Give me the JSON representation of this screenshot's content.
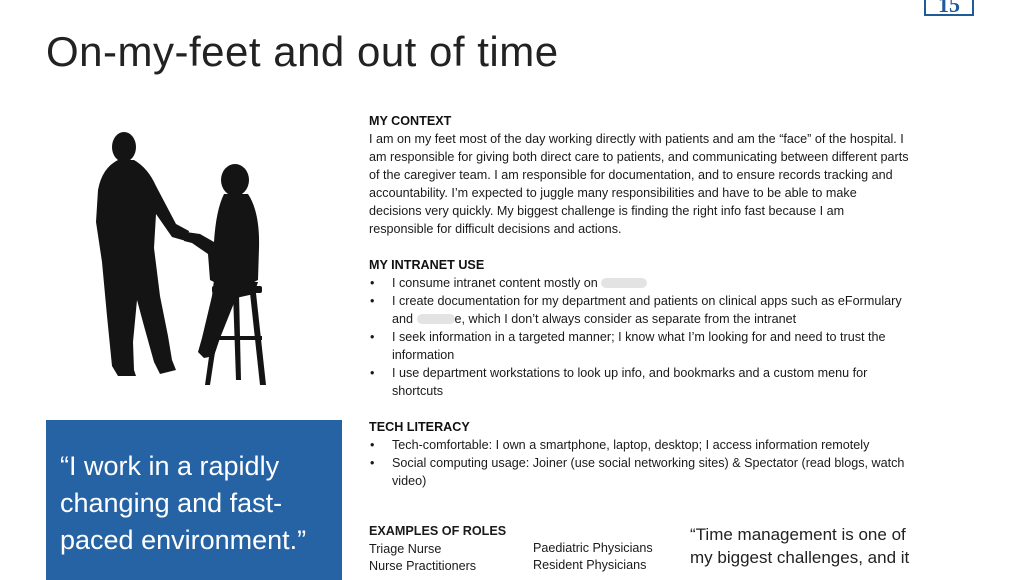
{
  "page": {
    "number": "15",
    "title": "On-my-feet and out of time"
  },
  "quote": "“I work in a rapidly changing and fast-paced environment.”",
  "context": {
    "heading": "MY CONTEXT",
    "text": "I am on my feet most of the day working directly with patients and am the “face” of the hospital.  I am responsible for giving both direct care to patients, and communicating between different parts of the caregiver team. I am responsible for documentation, and to ensure records tracking and accountability. I’m expected to juggle many responsibilities and have to be able to make decisions very quickly. My biggest challenge is finding the right info fast because I am responsible for difficult decisions and actions."
  },
  "intranet": {
    "heading": "MY INTRANET USE",
    "items": [
      {
        "before": "I consume intranet content mostly on ",
        "after": ""
      },
      {
        "before": "I create documentation for my department and patients on clinical apps such as eFormulary and ",
        "after": "e, which I don’t always consider as separate from the intranet"
      },
      {
        "text": "I seek information in a targeted manner; I know what I’m looking for and need to trust the information"
      },
      {
        "text": "I use department workstations to look up info, and bookmarks and a custom menu for shortcuts"
      }
    ]
  },
  "tech": {
    "heading": "TECH LITERACY",
    "items": [
      "Tech-comfortable: I own a smartphone, laptop, desktop; I access information remotely",
      "Social computing usage: Joiner (use social networking sites) & Spectator (read blogs, watch video)"
    ]
  },
  "roles": {
    "heading": "EXAMPLES OF ROLES",
    "col1": [
      "Triage Nurse",
      "Nurse Practitioners"
    ],
    "col2": [
      "Paediatric Physicians",
      "Resident Physicians"
    ]
  },
  "side_quote": "“Time management is one of my biggest challenges, and it",
  "colors": {
    "accent": "#2563a4",
    "page_number": "#1f5a9a"
  }
}
